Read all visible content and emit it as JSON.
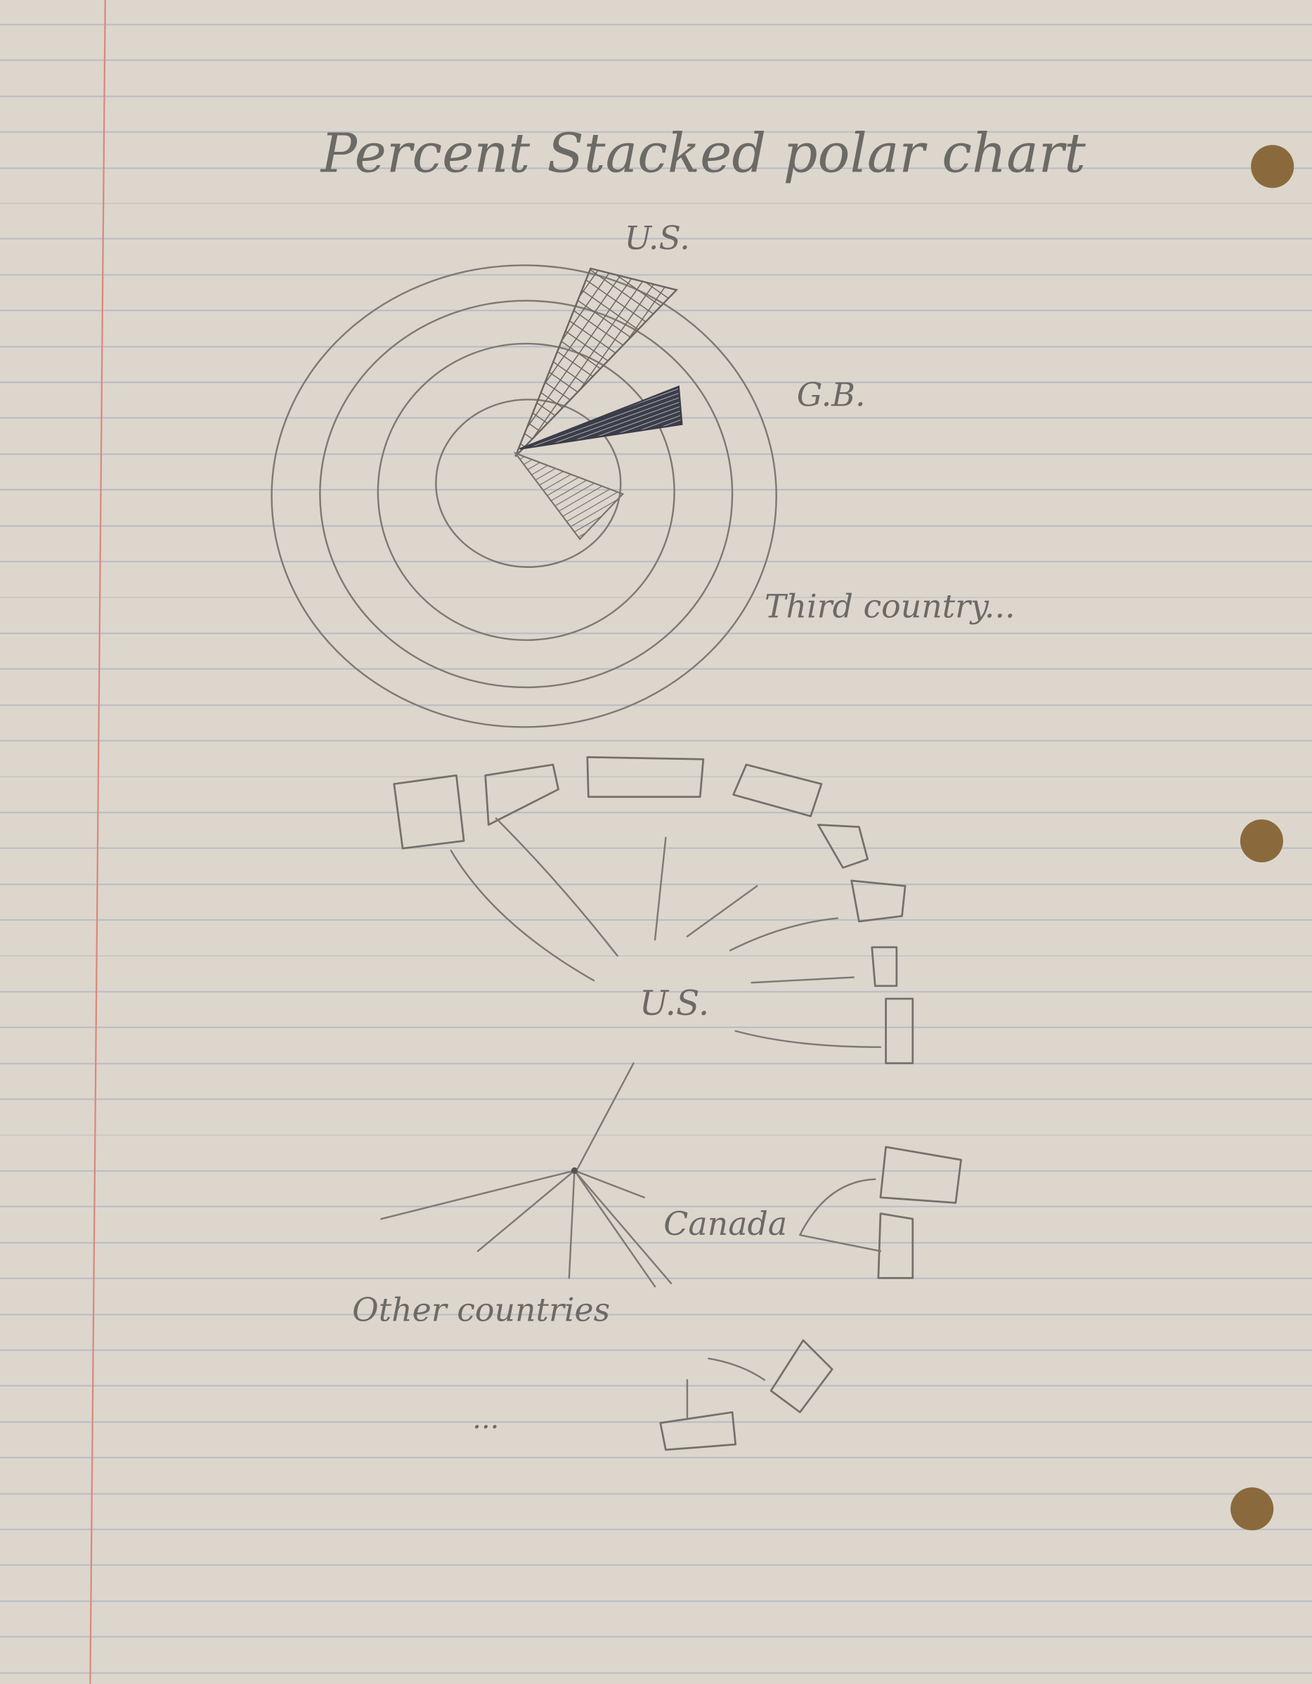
{
  "title": "Percent Stacked polar chart",
  "polar": {
    "labels": [
      "U.S.",
      "G.B.",
      "Third country..."
    ]
  },
  "network": {
    "center": "U.S.",
    "labels": [
      "Canada",
      "Other countries",
      "..."
    ]
  }
}
